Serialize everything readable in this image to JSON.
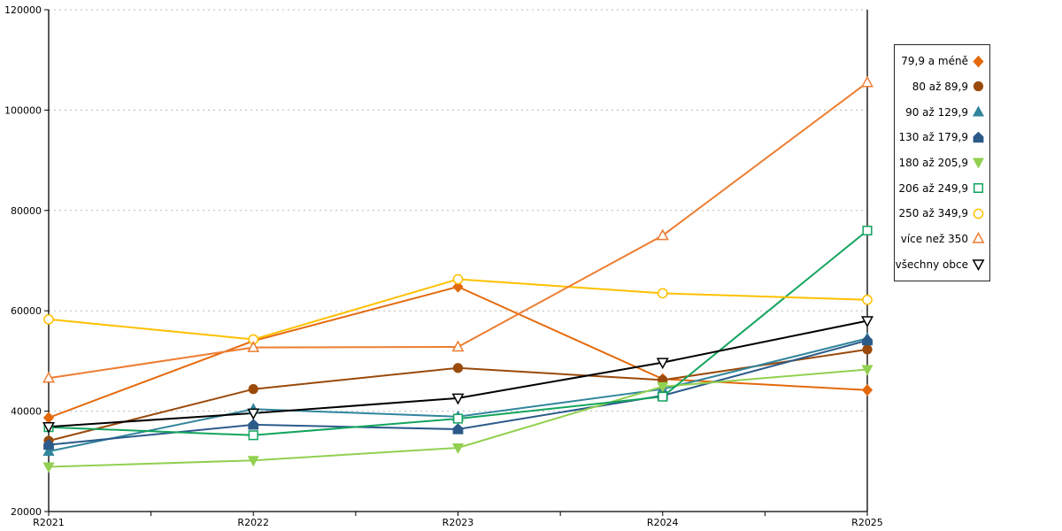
{
  "chart_data": {
    "type": "line",
    "title": "",
    "xlabel": "",
    "ylabel": "",
    "x": [
      "R2021",
      "R2022",
      "R2023",
      "R2024",
      "R2025"
    ],
    "ylim": [
      20000,
      120000
    ],
    "ytick_step": 20000,
    "yticks": [
      "20000",
      "40000",
      "60000",
      "80000",
      "100000",
      "120000"
    ],
    "grid": "horizontal-dashed",
    "legend_position": "right-box",
    "colors": {
      "grid": "#b8b8b8",
      "axis": "#000000",
      "background": "#ffffff"
    },
    "series": [
      {
        "name": "79,9 a méně",
        "color": "#E4690B",
        "marker": "diamond",
        "filled": true,
        "values": [
          38700,
          54000,
          64800,
          46400,
          44200
        ]
      },
      {
        "name": "80 až 89,9",
        "color": "#9A4A0B",
        "marker": "circle",
        "filled": true,
        "values": [
          34100,
          44400,
          48600,
          46200,
          52300
        ]
      },
      {
        "name": "90 až 129,9",
        "color": "#31859C",
        "marker": "triangle-up",
        "filled": true,
        "values": [
          32000,
          40400,
          38900,
          44400,
          54500
        ]
      },
      {
        "name": "130 až 179,9",
        "color": "#2C5B8A",
        "marker": "pentagon",
        "filled": true,
        "values": [
          33300,
          37300,
          36400,
          43100,
          54100
        ]
      },
      {
        "name": "180 až 205,9",
        "color": "#92D050",
        "marker": "triangle-down",
        "filled": true,
        "values": [
          28900,
          30200,
          32700,
          44900,
          48300
        ]
      },
      {
        "name": "206 až 249,9",
        "color": "#12A45E",
        "marker": "square",
        "filled": false,
        "values": [
          36800,
          35200,
          38500,
          42900,
          76000
        ]
      },
      {
        "name": "250 až 349,9",
        "color": "#FFC000",
        "marker": "circle",
        "filled": false,
        "values": [
          58300,
          54300,
          66300,
          63500,
          62200
        ]
      },
      {
        "name": "více než 350",
        "color": "#ED7D31",
        "marker": "triangle-up",
        "filled": false,
        "values": [
          46600,
          52700,
          52800,
          75000,
          105500
        ]
      },
      {
        "name": "všechny obce",
        "color": "#000000",
        "marker": "triangle-down",
        "filled": false,
        "values": [
          36900,
          39600,
          42600,
          49700,
          58000
        ]
      }
    ]
  }
}
